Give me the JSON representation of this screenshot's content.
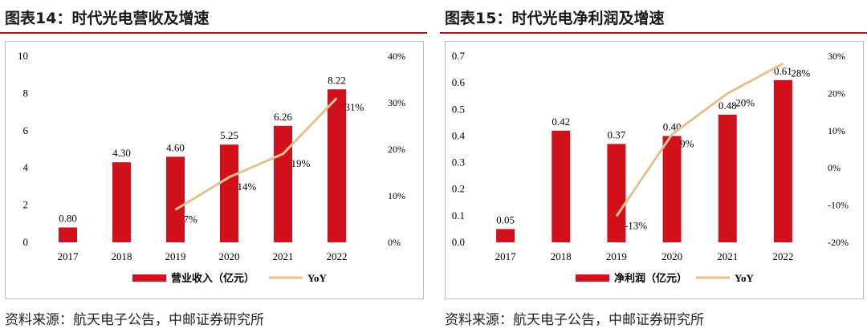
{
  "colors": {
    "bar": "#d0111b",
    "line": "#e5c08f",
    "title_rule": "#9b1c1c"
  },
  "left_panel": {
    "title": "图表14：时代光电营收及增速",
    "source": "资料来源：航天电子公告，中邮证券研究所"
  },
  "right_panel": {
    "title": "图表15：时代光电净利润及增速",
    "source": "资料来源：航天电子公告，中邮证券研究所"
  },
  "chart_data": [
    {
      "type": "bar",
      "categories": [
        "2017",
        "2018",
        "2019",
        "2020",
        "2021",
        "2022"
      ],
      "bar_series": {
        "name": "营业收入（亿元）",
        "values": [
          0.8,
          4.3,
          4.6,
          5.25,
          6.26,
          8.22
        ],
        "labels": [
          "0.80",
          "4.30",
          "4.60",
          "5.25",
          "6.26",
          "8.22"
        ]
      },
      "line_series": {
        "name": "YoY",
        "values": [
          null,
          null,
          7,
          14,
          19,
          31
        ],
        "labels": [
          "",
          "",
          "7%",
          "14%",
          "19%",
          "31%"
        ]
      },
      "left_axis": {
        "min": 0,
        "max": 10,
        "ticks": [
          "0",
          "2",
          "4",
          "6",
          "8",
          "10"
        ]
      },
      "right_axis": {
        "min": 0,
        "max": 40,
        "ticks": [
          "0%",
          "10%",
          "20%",
          "30%",
          "40%"
        ]
      },
      "legend": {
        "position": "bottom",
        "items": [
          "营业收入（亿元）",
          "YoY"
        ]
      }
    },
    {
      "type": "bar",
      "categories": [
        "2017",
        "2018",
        "2019",
        "2020",
        "2021",
        "2022"
      ],
      "bar_series": {
        "name": "净利润（亿元）",
        "values": [
          0.05,
          0.42,
          0.37,
          0.4,
          0.48,
          0.61
        ],
        "labels": [
          "0.05",
          "0.42",
          "0.37",
          "0.40",
          "0.48",
          "0.61"
        ]
      },
      "line_series": {
        "name": "YoY",
        "values": [
          null,
          null,
          -13,
          9,
          20,
          28
        ],
        "labels": [
          "",
          "",
          "-13%",
          "9%",
          "20%",
          "28%"
        ]
      },
      "left_axis": {
        "min": 0,
        "max": 0.7,
        "ticks": [
          "0.0",
          "0.1",
          "0.2",
          "0.3",
          "0.4",
          "0.5",
          "0.6",
          "0.7"
        ]
      },
      "right_axis": {
        "min": -20,
        "max": 30,
        "ticks": [
          "-20%",
          "-10%",
          "0%",
          "10%",
          "20%",
          "30%"
        ]
      },
      "legend": {
        "position": "bottom",
        "items": [
          "净利润（亿元）",
          "YoY"
        ]
      }
    }
  ]
}
